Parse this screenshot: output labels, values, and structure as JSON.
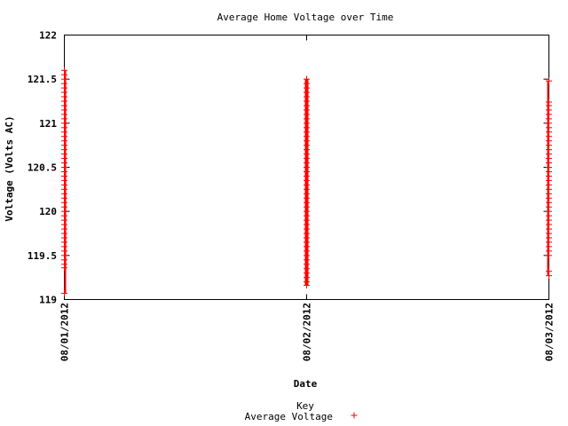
{
  "chart_data": {
    "type": "scatter",
    "title": "Average Home Voltage over Time",
    "xlabel": "Date",
    "ylabel": "Voltage (Volts AC)",
    "x_ticks": [
      "08/01/2012",
      "08/02/2012",
      "08/03/2012"
    ],
    "xlim": [
      "08/01/2012",
      "08/03/2012"
    ],
    "ylim": [
      119,
      122
    ],
    "y_ticks": [
      119,
      119.5,
      120,
      120.5,
      121,
      121.5,
      122
    ],
    "y_tick_labels": [
      "119",
      "119.5",
      "120",
      "120.5",
      "121",
      "121.5",
      "122"
    ],
    "grid": false,
    "legend": {
      "title": "Key",
      "position": "bottom-center"
    },
    "series": [
      {
        "name": "Average Voltage",
        "color": "#ff0000",
        "marker": "plus",
        "groups": [
          {
            "x": "08/01/2012",
            "y": [
              119.07,
              119.36,
              119.4,
              119.45,
              119.5,
              119.55,
              119.6,
              119.65,
              119.7,
              119.75,
              119.8,
              119.85,
              119.9,
              119.95,
              120.0,
              120.05,
              120.1,
              120.15,
              120.2,
              120.25,
              120.3,
              120.35,
              120.4,
              120.45,
              120.5,
              120.55,
              120.6,
              120.65,
              120.7,
              120.75,
              120.8,
              120.85,
              120.9,
              120.95,
              121.0,
              121.05,
              121.1,
              121.15,
              121.2,
              121.25,
              121.3,
              121.35,
              121.4,
              121.45,
              121.5,
              121.55,
              121.6
            ]
          },
          {
            "x": "08/02/2012",
            "y": [
              119.16,
              119.2,
              119.25,
              119.3,
              119.35,
              119.4,
              119.45,
              119.5,
              119.55,
              119.6,
              119.65,
              119.7,
              119.75,
              119.8,
              119.85,
              119.9,
              119.95,
              120.0,
              120.05,
              120.1,
              120.15,
              120.2,
              120.25,
              120.3,
              120.35,
              120.4,
              120.45,
              120.5,
              120.55,
              120.6,
              120.65,
              120.7,
              120.75,
              120.8,
              120.85,
              120.9,
              120.95,
              121.0,
              121.05,
              121.1,
              121.15,
              121.2,
              121.25,
              121.3,
              121.35,
              121.4,
              121.45,
              121.5
            ]
          },
          {
            "x": "08/03/2012",
            "y": [
              119.27,
              119.32,
              119.5,
              119.55,
              119.6,
              119.65,
              119.7,
              119.75,
              119.8,
              119.85,
              119.9,
              119.95,
              120.0,
              120.05,
              120.1,
              120.15,
              120.2,
              120.25,
              120.3,
              120.35,
              120.4,
              120.45,
              120.5,
              120.55,
              120.6,
              120.65,
              120.7,
              120.75,
              120.8,
              120.85,
              120.9,
              120.95,
              121.0,
              121.05,
              121.1,
              121.15,
              121.2,
              121.24,
              121.48
            ]
          }
        ]
      }
    ]
  }
}
